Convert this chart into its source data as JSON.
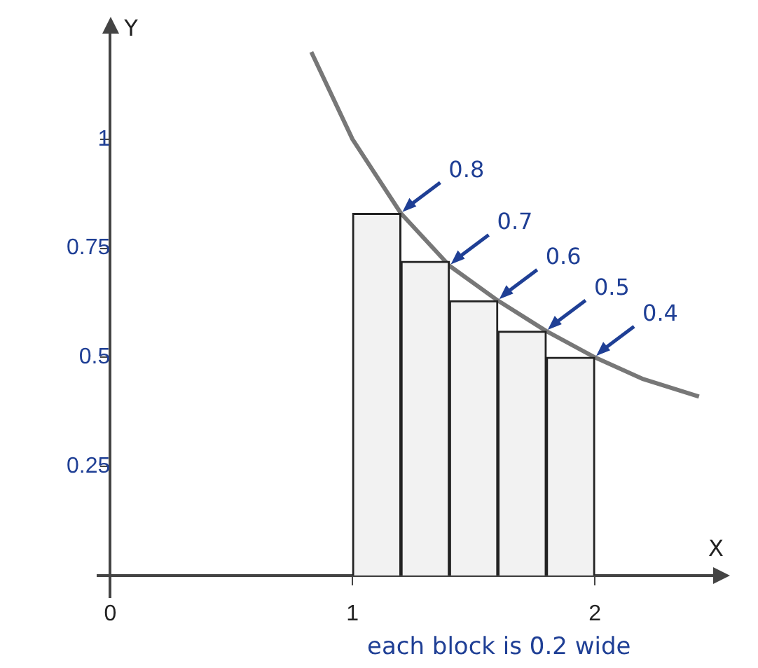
{
  "chart_data": {
    "type": "bar",
    "xlabel": "X",
    "ylabel": "Y",
    "series": [
      {
        "color": "#f2f2f2",
        "x": [
          1.1,
          1.3,
          1.5,
          1.7,
          1.9
        ],
        "values": [
          0.83,
          0.72,
          0.63,
          0.56,
          0.5
        ]
      },
      {
        "type": "line",
        "color": "#777777",
        "x": [
          0.83,
          1.0,
          1.2,
          1.4,
          1.6,
          1.8,
          2.0,
          2.2,
          2.43
        ],
        "values": [
          1.2,
          1.0,
          0.83,
          0.71,
          0.63,
          0.56,
          0.5,
          0.45,
          0.41
        ]
      }
    ],
    "xlim": [
      -0.05,
      2.5
    ],
    "ylim": [
      -0.05,
      1.25
    ],
    "xticks": [
      0,
      1,
      2
    ],
    "yticks": [
      0.25,
      0.5,
      0.75,
      1
    ],
    "grid": false,
    "legend": false,
    "marker": "none",
    "line_style": "solid",
    "annotations": [
      {
        "text": "0.8",
        "x": 1.2,
        "y": 0.83
      },
      {
        "text": "0.7",
        "x": 1.4,
        "y": 0.71
      },
      {
        "text": "0.6",
        "x": 1.6,
        "y": 0.63
      },
      {
        "text": "0.5",
        "x": 1.8,
        "y": 0.56
      },
      {
        "text": "0.4",
        "x": 2.0,
        "y": 0.5
      },
      "each block is 0.2 wide"
    ]
  }
}
